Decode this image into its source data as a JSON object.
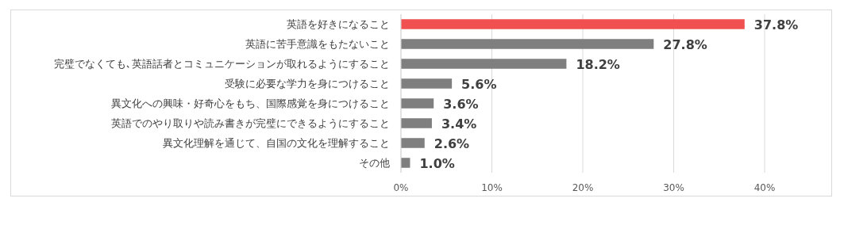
{
  "chart_data": {
    "type": "bar",
    "orientation": "horizontal",
    "categories": [
      "英語を好きになること",
      "英語に苦手意識をもたないこと",
      "完璧でなくても､英語話者とコミュニケーションが取れるようにすること",
      "受験に必要な学力を身につけること",
      "異文化への興味・好奇心をもち、国際感覚を身につけること",
      "英語でのやり取りや読み書きが完璧にできるようにすること",
      "異文化理解を通じて、自国の文化を理解すること",
      "その他"
    ],
    "values": [
      37.8,
      27.8,
      18.2,
      5.6,
      3.6,
      3.4,
      2.6,
      1.0
    ],
    "colors": [
      "#f05050",
      "#7f7f7f",
      "#7f7f7f",
      "#7f7f7f",
      "#7f7f7f",
      "#7f7f7f",
      "#7f7f7f",
      "#7f7f7f"
    ],
    "value_labels": [
      "37.8%",
      "27.8%",
      "18.2%",
      "5.6%",
      "3.6%",
      "3.4%",
      "2.6%",
      "1.0%"
    ],
    "xlim": [
      0,
      40
    ],
    "xticks": [
      {
        "value": 0,
        "label": "0%"
      },
      {
        "value": 10,
        "label": "10%"
      },
      {
        "value": 20,
        "label": "20%"
      },
      {
        "value": 30,
        "label": "30%"
      },
      {
        "value": 40,
        "label": "40%"
      }
    ],
    "grid": "x"
  }
}
